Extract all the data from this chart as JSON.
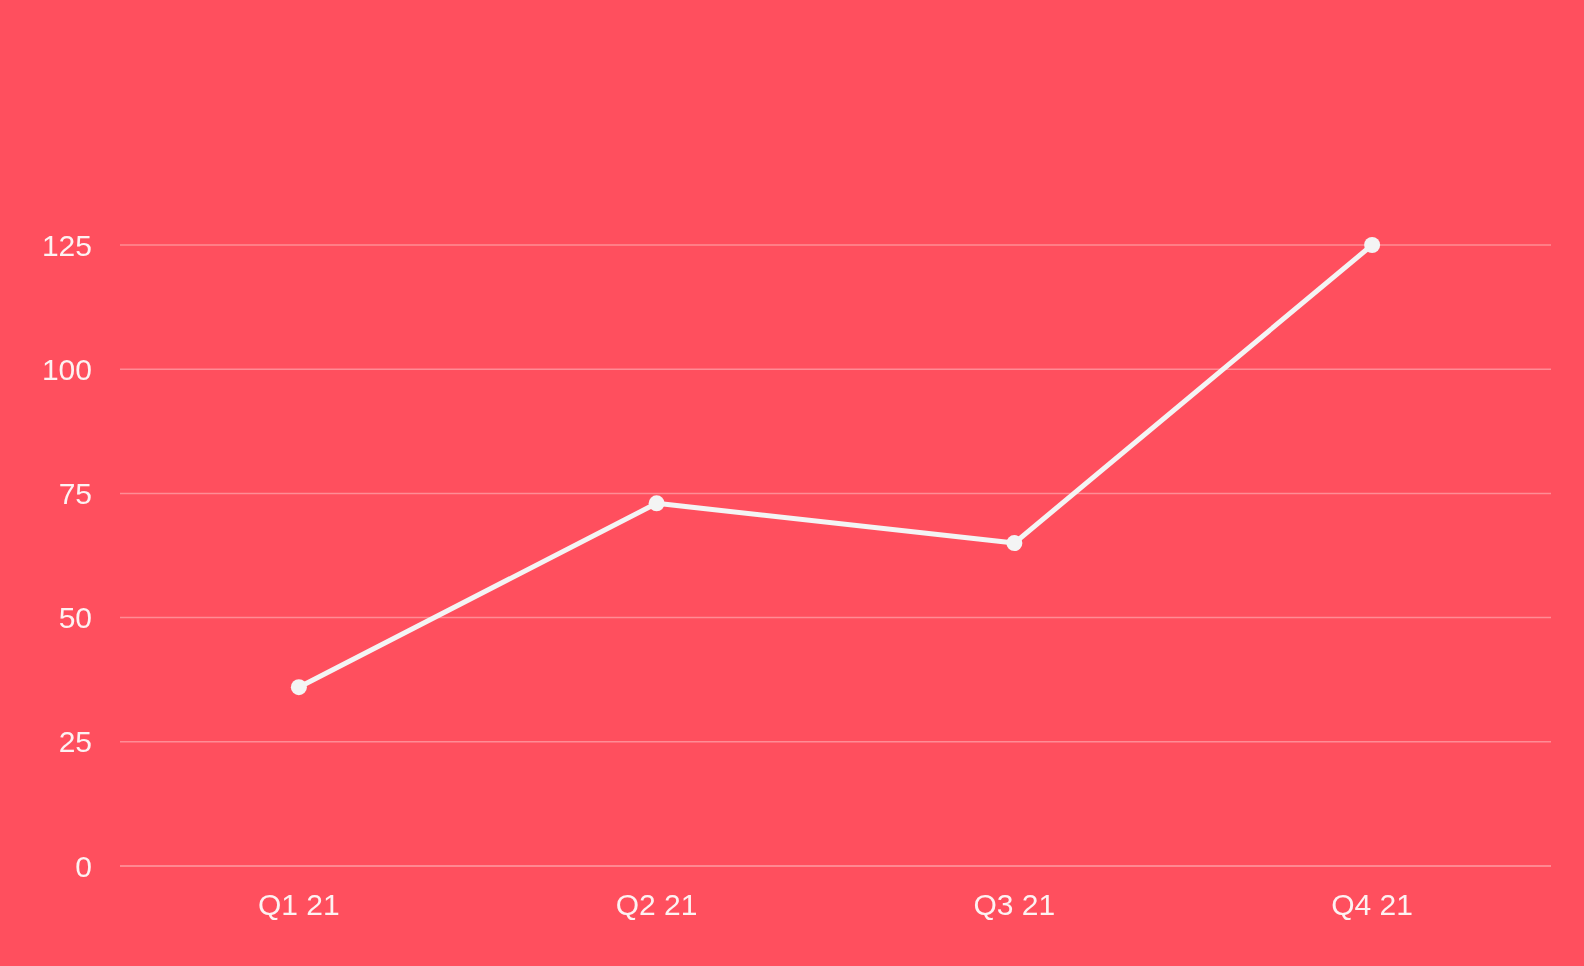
{
  "chart_data": {
    "type": "line",
    "categories": [
      "Q1 21",
      "Q2 21",
      "Q3 21",
      "Q4 21"
    ],
    "series": [
      {
        "color": "#f4f4f4",
        "values": [
          36,
          73,
          65,
          125
        ]
      }
    ],
    "ylim": [
      0,
      125
    ],
    "yticks": [
      0,
      25,
      50,
      75,
      100,
      125
    ],
    "grid": "y",
    "marker": "circle",
    "line_style": "solid"
  }
}
